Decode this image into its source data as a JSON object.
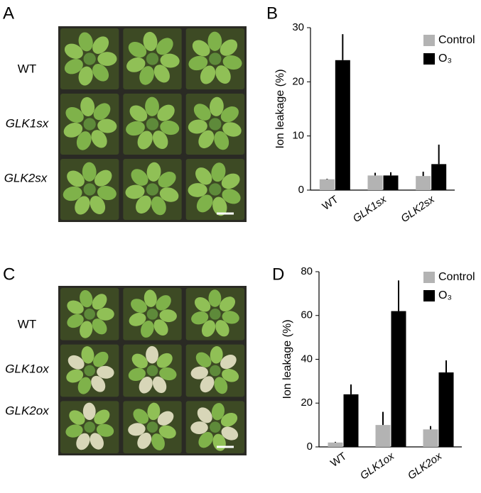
{
  "panels": [
    {
      "label": "A",
      "rows": [
        "WT",
        "GLK1sx",
        "GLK2sx"
      ]
    },
    {
      "label": "B"
    },
    {
      "label": "C",
      "rows": [
        "WT",
        "GLK1ox",
        "GLK2ox"
      ]
    },
    {
      "label": "D"
    }
  ],
  "chart_data": [
    {
      "type": "bar",
      "y_label": "Ion leakage (%)",
      "categories": [
        "WT",
        "GLK1sx",
        "GLK2sx"
      ],
      "series": [
        {
          "name": "Control",
          "color": "#b3b3b3",
          "values": [
            2,
            2.7,
            2.6
          ],
          "errors": [
            0.1,
            0.5,
            0.8
          ]
        },
        {
          "name": "O₃",
          "color": "#000000",
          "values": [
            24,
            2.7,
            4.8
          ],
          "errors": [
            4.8,
            0.6,
            3.6
          ]
        }
      ],
      "ylim": [
        0,
        30
      ],
      "yticks": [
        0,
        10,
        20,
        30
      ],
      "legend": "upper right"
    },
    {
      "type": "bar",
      "y_label": "Ion leakage (%)",
      "categories": [
        "WT",
        "GLK1ox",
        "GLK2ox"
      ],
      "series": [
        {
          "name": "Control",
          "color": "#b3b3b3",
          "values": [
            2,
            10,
            8
          ],
          "errors": [
            0.3,
            6,
            1.5
          ]
        },
        {
          "name": "O₃",
          "color": "#000000",
          "values": [
            24,
            62,
            34
          ],
          "errors": [
            4.5,
            14,
            5.5
          ]
        }
      ],
      "ylim": [
        0,
        80
      ],
      "yticks": [
        0,
        20,
        40,
        60,
        80
      ],
      "legend": "upper right"
    }
  ]
}
